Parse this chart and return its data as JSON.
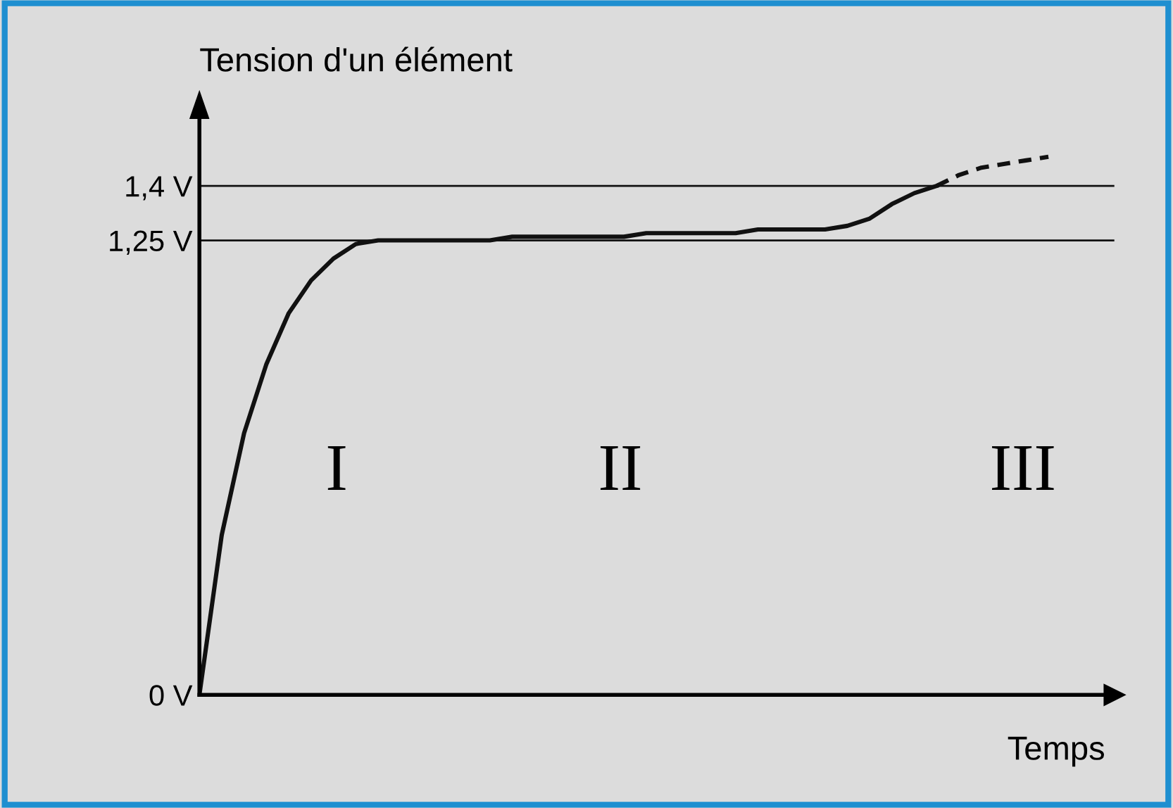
{
  "chart_data": {
    "type": "line",
    "xlabel": "Temps",
    "ylabel": "Tension d'un élément",
    "categories": [
      null,
      null,
      null,
      null,
      null,
      null,
      null,
      null,
      null,
      null,
      null,
      null,
      null,
      null,
      null,
      null,
      null,
      null,
      null,
      null,
      null,
      null,
      null,
      null,
      null,
      null,
      null,
      null,
      null,
      null,
      null,
      null,
      null,
      null,
      null,
      null,
      null,
      null,
      null
    ],
    "ylim": [
      0,
      1.6
    ],
    "yticks": [
      {
        "value": 0,
        "label": "0 V"
      },
      {
        "value": 1.25,
        "label": "1,25 V"
      },
      {
        "value": 1.4,
        "label": "1,4 V"
      }
    ],
    "tick_labels": "y",
    "grid": false,
    "legend": false,
    "series": [
      {
        "color": "#111111",
        "line_style": "solid",
        "values": [
          0,
          0.44,
          0.72,
          0.91,
          1.05,
          1.14,
          1.2,
          1.24,
          1.25,
          1.25,
          1.25,
          1.25,
          1.25,
          1.25,
          1.26,
          1.26,
          1.26,
          1.26,
          1.26,
          1.26,
          1.27,
          1.27,
          1.27,
          1.27,
          1.27,
          1.28,
          1.28,
          1.28,
          1.28,
          1.29,
          1.31,
          1.35,
          1.38,
          1.4,
          null,
          null,
          null,
          null,
          null
        ]
      },
      {
        "color": "#111111",
        "line_style": "dashed",
        "values": [
          null,
          null,
          null,
          null,
          null,
          null,
          null,
          null,
          null,
          null,
          null,
          null,
          null,
          null,
          null,
          null,
          null,
          null,
          null,
          null,
          null,
          null,
          null,
          null,
          null,
          null,
          null,
          null,
          null,
          null,
          null,
          null,
          null,
          1.4,
          1.43,
          1.45,
          1.46,
          1.47,
          1.48
        ]
      }
    ],
    "ref_lines": [
      {
        "axis": "y",
        "value": 1.25,
        "color": "#111111",
        "line_style": "solid"
      },
      {
        "axis": "y",
        "value": 1.4,
        "color": "#111111",
        "line_style": "solid"
      }
    ],
    "annotations": [
      "I",
      "II",
      "III"
    ]
  }
}
